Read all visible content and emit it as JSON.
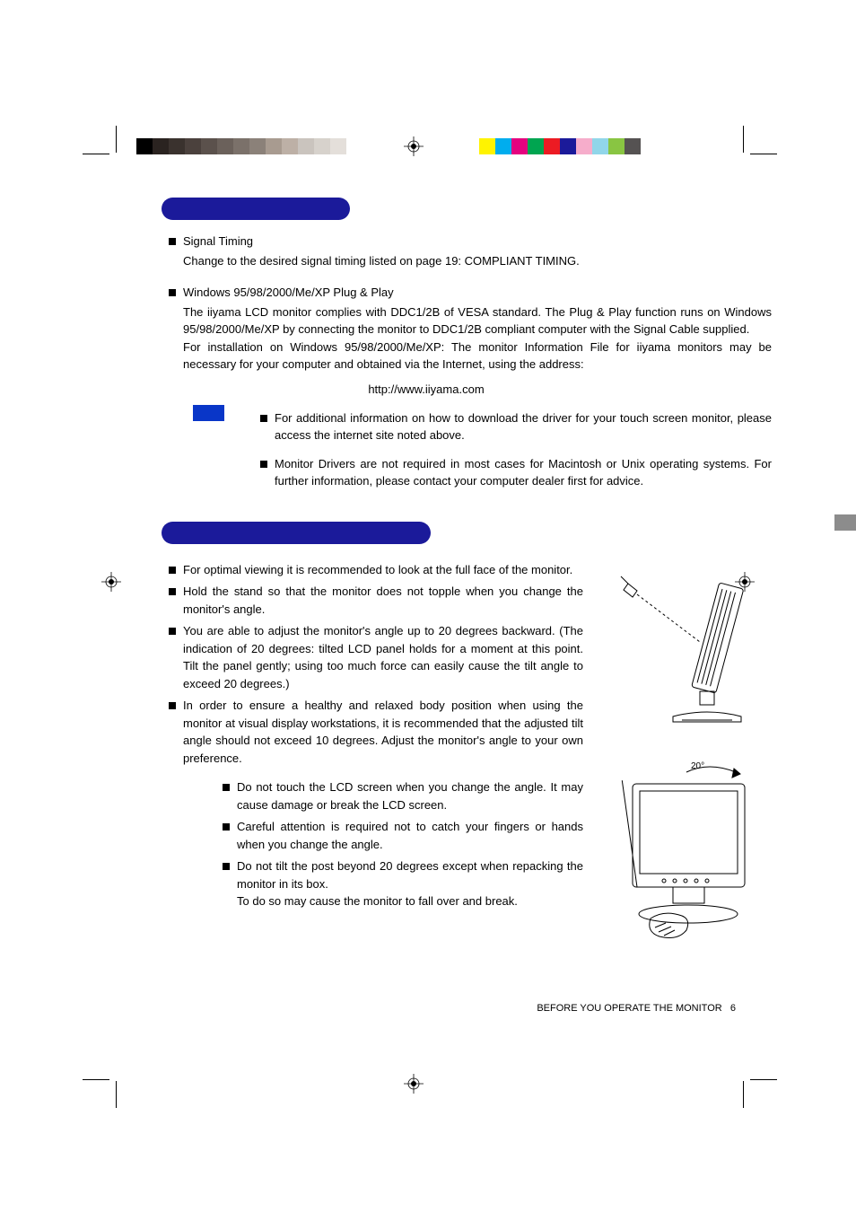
{
  "colorbars": {
    "left": [
      "#000000",
      "#2a2320",
      "#3a322e",
      "#4b413d",
      "#5b514c",
      "#6b615b",
      "#7b716a",
      "#8b8179",
      "#a89b90",
      "#bdb0a6",
      "#cac4be",
      "#d7d2cc",
      "#e4dfda"
    ],
    "right": [
      "#fff300",
      "#00adee",
      "#e4037f",
      "#00a550",
      "#ec1b23",
      "#1b1a9a",
      "#f6adcb",
      "#91d6e9",
      "#89c542",
      "#555252"
    ]
  },
  "side_tab_color": "#8c8c8c",
  "pill_color": "#1b1a9a",
  "note_box_color": "#0936c8",
  "section1": {
    "items": [
      {
        "title": "Signal Timing",
        "body": "Change to the desired signal timing listed on page 19: COMPLIANT TIMING."
      },
      {
        "title": "Windows 95/98/2000/Me/XP Plug & Play",
        "body": "The iiyama LCD monitor complies with DDC1/2B of VESA standard. The Plug & Play function runs on Windows 95/98/2000/Me/XP by connecting the monitor to DDC1/2B compliant computer with the Signal Cable supplied.\nFor installation on Windows 95/98/2000/Me/XP: The monitor Information File for iiyama monitors may be necessary for your computer and obtained via the Internet, using the address:"
      }
    ],
    "url": "http://www.iiyama.com",
    "notes": [
      "For additional information on how to download the driver for your touch screen monitor, please access the internet site noted above.",
      "Monitor Drivers are not required in most cases for Macintosh or Unix operating systems. For further information, please contact your computer dealer first for advice."
    ]
  },
  "section2": {
    "bullets": [
      "For optimal viewing it is recommended to look at the full face of the monitor.",
      "Hold the stand so that the monitor does not topple when you change the monitor's angle.",
      "You are able to adjust the monitor's angle up to 20 degrees backward. (The indication of  20 degrees: tilted LCD panel holds for a moment at this point. Tilt the panel gently; using too much force can easily cause the tilt angle to exceed 20 degrees.)",
      "In order to ensure a healthy and relaxed body position when using the monitor at visual display workstations, it is recommended that the adjusted tilt angle should not exceed 10 degrees. Adjust the monitor's angle to your own preference."
    ],
    "angle_label": "20°",
    "cautions": [
      "Do not touch the LCD screen when you change the angle. It may cause damage or break the LCD screen.",
      "Careful attention is required not to catch your fingers or hands when you change the angle.",
      "Do not tilt the post beyond 20 degrees except when repacking the monitor in its box.\nTo do so may cause the monitor to fall over and break."
    ]
  },
  "footer": {
    "text": "BEFORE YOU OPERATE THE MONITOR",
    "page": "6"
  }
}
